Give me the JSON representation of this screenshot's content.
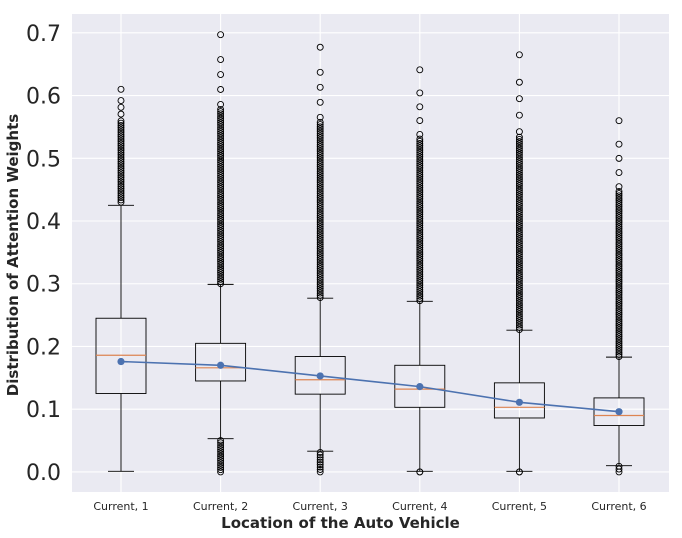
{
  "chart_data": {
    "type": "box",
    "xlabel": "Location of the Auto Vehicle",
    "ylabel": "Distribution of Attention Weights",
    "ylim": [
      -0.032,
      0.73
    ],
    "yticks": [
      0.0,
      0.1,
      0.2,
      0.3,
      0.4,
      0.5,
      0.6,
      0.7
    ],
    "ytick_labels": [
      "0.0",
      "0.1",
      "0.2",
      "0.3",
      "0.4",
      "0.5",
      "0.6",
      "0.7"
    ],
    "grid": true,
    "categories": [
      "Current, 1",
      "Current, 2",
      "Current, 3",
      "Current, 4",
      "Current, 5",
      "Current, 6"
    ],
    "boxes": [
      {
        "whisker_low": 0.001,
        "q1": 0.125,
        "median": 0.186,
        "q3": 0.245,
        "whisker_high": 0.425,
        "outliers_high": [
          0.43,
          0.61
        ],
        "outliers_low": null,
        "mean": 0.176
      },
      {
        "whisker_low": 0.053,
        "q1": 0.145,
        "median": 0.166,
        "q3": 0.205,
        "whisker_high": 0.299,
        "outliers_high": [
          0.3,
          0.697
        ],
        "outliers_low": [
          0.0,
          0.05
        ],
        "mean": 0.17
      },
      {
        "whisker_low": 0.033,
        "q1": 0.124,
        "median": 0.147,
        "q3": 0.184,
        "whisker_high": 0.277,
        "outliers_high": [
          0.278,
          0.677
        ],
        "outliers_low": [
          0.0,
          0.031
        ],
        "mean": 0.153
      },
      {
        "whisker_low": 0.001,
        "q1": 0.103,
        "median": 0.132,
        "q3": 0.17,
        "whisker_high": 0.272,
        "outliers_high": [
          0.273,
          0.641
        ],
        "outliers_low": [
          0.0,
          0.0
        ],
        "mean": 0.136
      },
      {
        "whisker_low": 0.001,
        "q1": 0.086,
        "median": 0.103,
        "q3": 0.142,
        "whisker_high": 0.226,
        "outliers_high": [
          0.227,
          0.665
        ],
        "outliers_low": [
          0.0,
          0.0
        ],
        "mean": 0.111
      },
      {
        "whisker_low": 0.01,
        "q1": 0.074,
        "median": 0.09,
        "q3": 0.118,
        "whisker_high": 0.183,
        "outliers_high": [
          0.184,
          0.56
        ],
        "outliers_low": [
          0.0,
          0.009
        ],
        "mean": 0.096
      }
    ],
    "colors": {
      "background": "#eaeaf2",
      "grid": "#ffffff",
      "box": "#000000",
      "median": "#dd8452",
      "mean_line": "#4c72b0"
    }
  }
}
